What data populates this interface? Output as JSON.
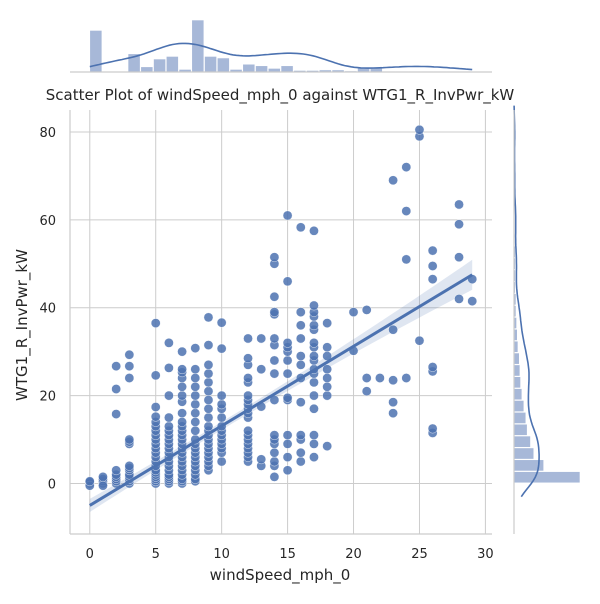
{
  "chart_data": {
    "type": "scatter",
    "title": "Scatter Plot of windSpeed_mph_0 against WTG1_R_InvPwr_kW",
    "xlabel": "windSpeed_mph_0",
    "ylabel": "WTG1_R_InvPwr_kW",
    "xlim": [
      -1.5,
      30.5
    ],
    "ylim": [
      -11.5,
      85
    ],
    "xticks": [
      0,
      5,
      10,
      15,
      20,
      25,
      30
    ],
    "yticks": [
      0,
      20,
      40,
      60,
      80
    ],
    "grid": true,
    "regression": {
      "start": [
        0,
        -5
      ],
      "end": [
        29,
        47.5
      ],
      "ci_band": true
    },
    "point_color": "#4c72b0",
    "line_color": "#4c72b0",
    "points": [
      [
        0,
        0
      ],
      [
        0,
        0.3
      ],
      [
        0,
        -0.5
      ],
      [
        0,
        0.5
      ],
      [
        1,
        0
      ],
      [
        1,
        0.5
      ],
      [
        1,
        1
      ],
      [
        1,
        1.5
      ],
      [
        1,
        -0.5
      ],
      [
        2,
        0
      ],
      [
        2,
        0.5
      ],
      [
        2,
        1
      ],
      [
        2,
        1.5
      ],
      [
        2,
        2
      ],
      [
        2,
        3
      ],
      [
        2,
        15.8
      ],
      [
        2,
        21.5
      ],
      [
        2,
        26.7
      ],
      [
        3,
        0
      ],
      [
        3,
        0.5
      ],
      [
        3,
        1
      ],
      [
        3,
        1.5
      ],
      [
        3,
        2
      ],
      [
        3,
        3
      ],
      [
        3,
        3.5
      ],
      [
        3,
        4
      ],
      [
        3,
        9
      ],
      [
        3,
        9.5
      ],
      [
        3,
        10
      ],
      [
        3,
        24
      ],
      [
        3,
        26.7
      ],
      [
        3,
        29.3
      ],
      [
        5,
        0
      ],
      [
        5,
        0.5
      ],
      [
        5,
        1
      ],
      [
        5,
        1.5
      ],
      [
        5,
        2
      ],
      [
        5,
        2.5
      ],
      [
        5,
        3
      ],
      [
        5,
        4
      ],
      [
        5,
        5
      ],
      [
        5,
        6
      ],
      [
        5,
        7
      ],
      [
        5,
        8
      ],
      [
        5,
        9
      ],
      [
        5,
        10
      ],
      [
        5,
        11
      ],
      [
        5,
        12
      ],
      [
        5,
        13
      ],
      [
        5,
        14
      ],
      [
        5,
        15.2
      ],
      [
        5,
        17.4
      ],
      [
        5,
        24.6
      ],
      [
        5,
        36.5
      ],
      [
        6,
        0
      ],
      [
        6,
        0.5
      ],
      [
        6,
        1
      ],
      [
        6,
        1.5
      ],
      [
        6,
        2
      ],
      [
        6,
        3
      ],
      [
        6,
        4
      ],
      [
        6,
        5
      ],
      [
        6,
        6
      ],
      [
        6,
        7
      ],
      [
        6,
        8
      ],
      [
        6,
        9
      ],
      [
        6,
        10
      ],
      [
        6,
        11
      ],
      [
        6,
        12
      ],
      [
        6,
        13
      ],
      [
        6,
        15
      ],
      [
        6,
        20
      ],
      [
        6,
        26.3
      ],
      [
        6,
        32
      ],
      [
        7,
        0
      ],
      [
        7,
        0.5
      ],
      [
        7,
        1
      ],
      [
        7,
        2
      ],
      [
        7,
        3
      ],
      [
        7,
        4
      ],
      [
        7,
        5
      ],
      [
        7,
        6
      ],
      [
        7,
        7
      ],
      [
        7,
        8
      ],
      [
        7,
        9
      ],
      [
        7,
        10
      ],
      [
        7,
        11
      ],
      [
        7,
        12
      ],
      [
        7,
        13
      ],
      [
        7,
        14
      ],
      [
        7,
        16
      ],
      [
        7,
        18.6
      ],
      [
        7,
        20
      ],
      [
        7,
        22
      ],
      [
        7,
        24
      ],
      [
        7,
        25.3
      ],
      [
        7,
        26
      ],
      [
        7,
        30
      ],
      [
        8,
        0.5
      ],
      [
        8,
        1
      ],
      [
        8,
        2
      ],
      [
        8,
        3
      ],
      [
        8,
        4
      ],
      [
        8,
        5
      ],
      [
        8,
        6
      ],
      [
        8,
        7
      ],
      [
        8,
        8
      ],
      [
        8,
        9
      ],
      [
        8,
        10
      ],
      [
        8,
        12
      ],
      [
        8,
        14
      ],
      [
        8,
        16
      ],
      [
        8,
        18
      ],
      [
        8,
        20
      ],
      [
        8,
        22
      ],
      [
        8,
        24
      ],
      [
        8,
        26
      ],
      [
        8,
        30.8
      ],
      [
        9,
        3
      ],
      [
        9,
        4
      ],
      [
        9,
        5
      ],
      [
        9,
        6
      ],
      [
        9,
        7
      ],
      [
        9,
        8
      ],
      [
        9,
        9
      ],
      [
        9,
        10
      ],
      [
        9,
        11
      ],
      [
        9,
        12
      ],
      [
        9,
        13
      ],
      [
        9,
        15
      ],
      [
        9,
        17
      ],
      [
        9,
        19
      ],
      [
        9,
        21
      ],
      [
        9,
        23
      ],
      [
        9,
        25
      ],
      [
        9,
        27
      ],
      [
        9,
        31.5
      ],
      [
        9,
        37.8
      ],
      [
        10,
        5
      ],
      [
        10,
        7
      ],
      [
        10,
        8
      ],
      [
        10,
        9
      ],
      [
        10,
        10
      ],
      [
        10,
        11
      ],
      [
        10,
        12
      ],
      [
        10,
        13
      ],
      [
        10,
        15
      ],
      [
        10,
        17
      ],
      [
        10,
        18
      ],
      [
        10,
        20
      ],
      [
        10,
        30.7
      ],
      [
        10,
        36.6
      ],
      [
        12,
        5
      ],
      [
        12,
        6
      ],
      [
        12,
        7
      ],
      [
        12,
        8
      ],
      [
        12,
        9
      ],
      [
        12,
        10
      ],
      [
        12,
        11
      ],
      [
        12,
        12
      ],
      [
        12,
        15
      ],
      [
        12,
        16
      ],
      [
        12,
        17
      ],
      [
        12,
        18
      ],
      [
        12,
        19
      ],
      [
        12,
        20
      ],
      [
        12,
        23
      ],
      [
        12,
        24
      ],
      [
        12,
        27
      ],
      [
        12,
        28.5
      ],
      [
        12,
        33
      ],
      [
        13,
        4
      ],
      [
        13,
        5.5
      ],
      [
        13,
        17.5
      ],
      [
        13,
        26
      ],
      [
        13,
        33
      ],
      [
        14,
        1.5
      ],
      [
        14,
        4
      ],
      [
        14,
        5
      ],
      [
        14,
        7
      ],
      [
        14,
        9
      ],
      [
        14,
        10
      ],
      [
        14,
        11
      ],
      [
        14,
        19
      ],
      [
        14,
        25
      ],
      [
        14,
        28
      ],
      [
        14,
        31.5
      ],
      [
        14,
        33
      ],
      [
        14,
        38.5
      ],
      [
        14,
        39
      ],
      [
        14,
        42.5
      ],
      [
        14,
        50
      ],
      [
        14,
        51.5
      ],
      [
        15,
        3
      ],
      [
        15,
        6
      ],
      [
        15,
        9
      ],
      [
        15,
        11
      ],
      [
        15,
        19
      ],
      [
        15,
        19.5
      ],
      [
        15,
        25
      ],
      [
        15,
        28
      ],
      [
        15,
        30
      ],
      [
        15,
        31
      ],
      [
        15,
        32
      ],
      [
        15,
        46
      ],
      [
        15,
        61
      ],
      [
        16,
        5
      ],
      [
        16,
        7
      ],
      [
        16,
        10
      ],
      [
        16,
        11
      ],
      [
        16,
        18.5
      ],
      [
        16,
        24
      ],
      [
        16,
        27
      ],
      [
        16,
        29
      ],
      [
        16,
        33
      ],
      [
        16,
        36
      ],
      [
        16,
        39
      ],
      [
        16,
        58.3
      ],
      [
        17,
        6
      ],
      [
        17,
        9
      ],
      [
        17,
        11
      ],
      [
        17,
        17
      ],
      [
        17,
        20
      ],
      [
        17,
        23
      ],
      [
        17,
        25
      ],
      [
        17,
        26
      ],
      [
        17,
        28
      ],
      [
        17,
        29
      ],
      [
        17,
        31
      ],
      [
        17,
        32
      ],
      [
        17,
        35
      ],
      [
        17,
        36
      ],
      [
        17,
        38
      ],
      [
        17,
        39
      ],
      [
        17,
        40.5
      ],
      [
        17,
        57.5
      ],
      [
        18,
        8.5
      ],
      [
        18,
        20
      ],
      [
        18,
        22
      ],
      [
        18,
        24
      ],
      [
        18,
        26
      ],
      [
        18,
        29
      ],
      [
        18,
        31
      ],
      [
        18,
        36.5
      ],
      [
        20,
        30.2
      ],
      [
        20,
        39
      ],
      [
        21,
        21
      ],
      [
        21,
        24
      ],
      [
        21,
        39.5
      ],
      [
        22,
        24
      ],
      [
        23,
        16
      ],
      [
        23,
        18.5
      ],
      [
        23,
        23.5
      ],
      [
        23,
        35
      ],
      [
        23,
        69
      ],
      [
        24,
        24
      ],
      [
        24,
        51
      ],
      [
        24,
        62
      ],
      [
        24,
        72
      ],
      [
        25,
        32.5
      ],
      [
        25,
        79
      ],
      [
        25,
        80.5
      ],
      [
        26,
        11.5
      ],
      [
        26,
        12.5
      ],
      [
        26,
        25.5
      ],
      [
        26,
        26.5
      ],
      [
        26,
        46.5
      ],
      [
        26,
        49.5
      ],
      [
        26,
        53
      ],
      [
        28,
        42
      ],
      [
        28,
        51.5
      ],
      [
        28,
        59
      ],
      [
        28,
        63.5
      ],
      [
        29,
        41.5
      ],
      [
        29,
        46.5
      ]
    ],
    "top_hist": {
      "range": [
        0,
        29
      ],
      "bins": 30,
      "counts": [
        0.8,
        0,
        0,
        0.35,
        0.1,
        0.25,
        0.3,
        0.05,
        1.0,
        0.3,
        0.27,
        0.05,
        0.15,
        0.12,
        0.07,
        0.12,
        0.03,
        0.03,
        0.04,
        0.04,
        0.02,
        0.09,
        0.09,
        0.01,
        0.01,
        0.01,
        0.01,
        0.01,
        0.01,
        0.01
      ]
    },
    "right_hist": {
      "range": [
        0,
        81
      ],
      "bins": 30,
      "counts": [
        1.0,
        0.45,
        0.3,
        0.25,
        0.2,
        0.18,
        0.15,
        0.12,
        0.1,
        0.09,
        0.08,
        0.06,
        0.05,
        0.04,
        0.03,
        0.03,
        0.02,
        0.02,
        0.02,
        0.02,
        0.01,
        0.01,
        0.01,
        0.01,
        0.01,
        0.01,
        0.01,
        0.01,
        0.01,
        0.01
      ]
    }
  }
}
